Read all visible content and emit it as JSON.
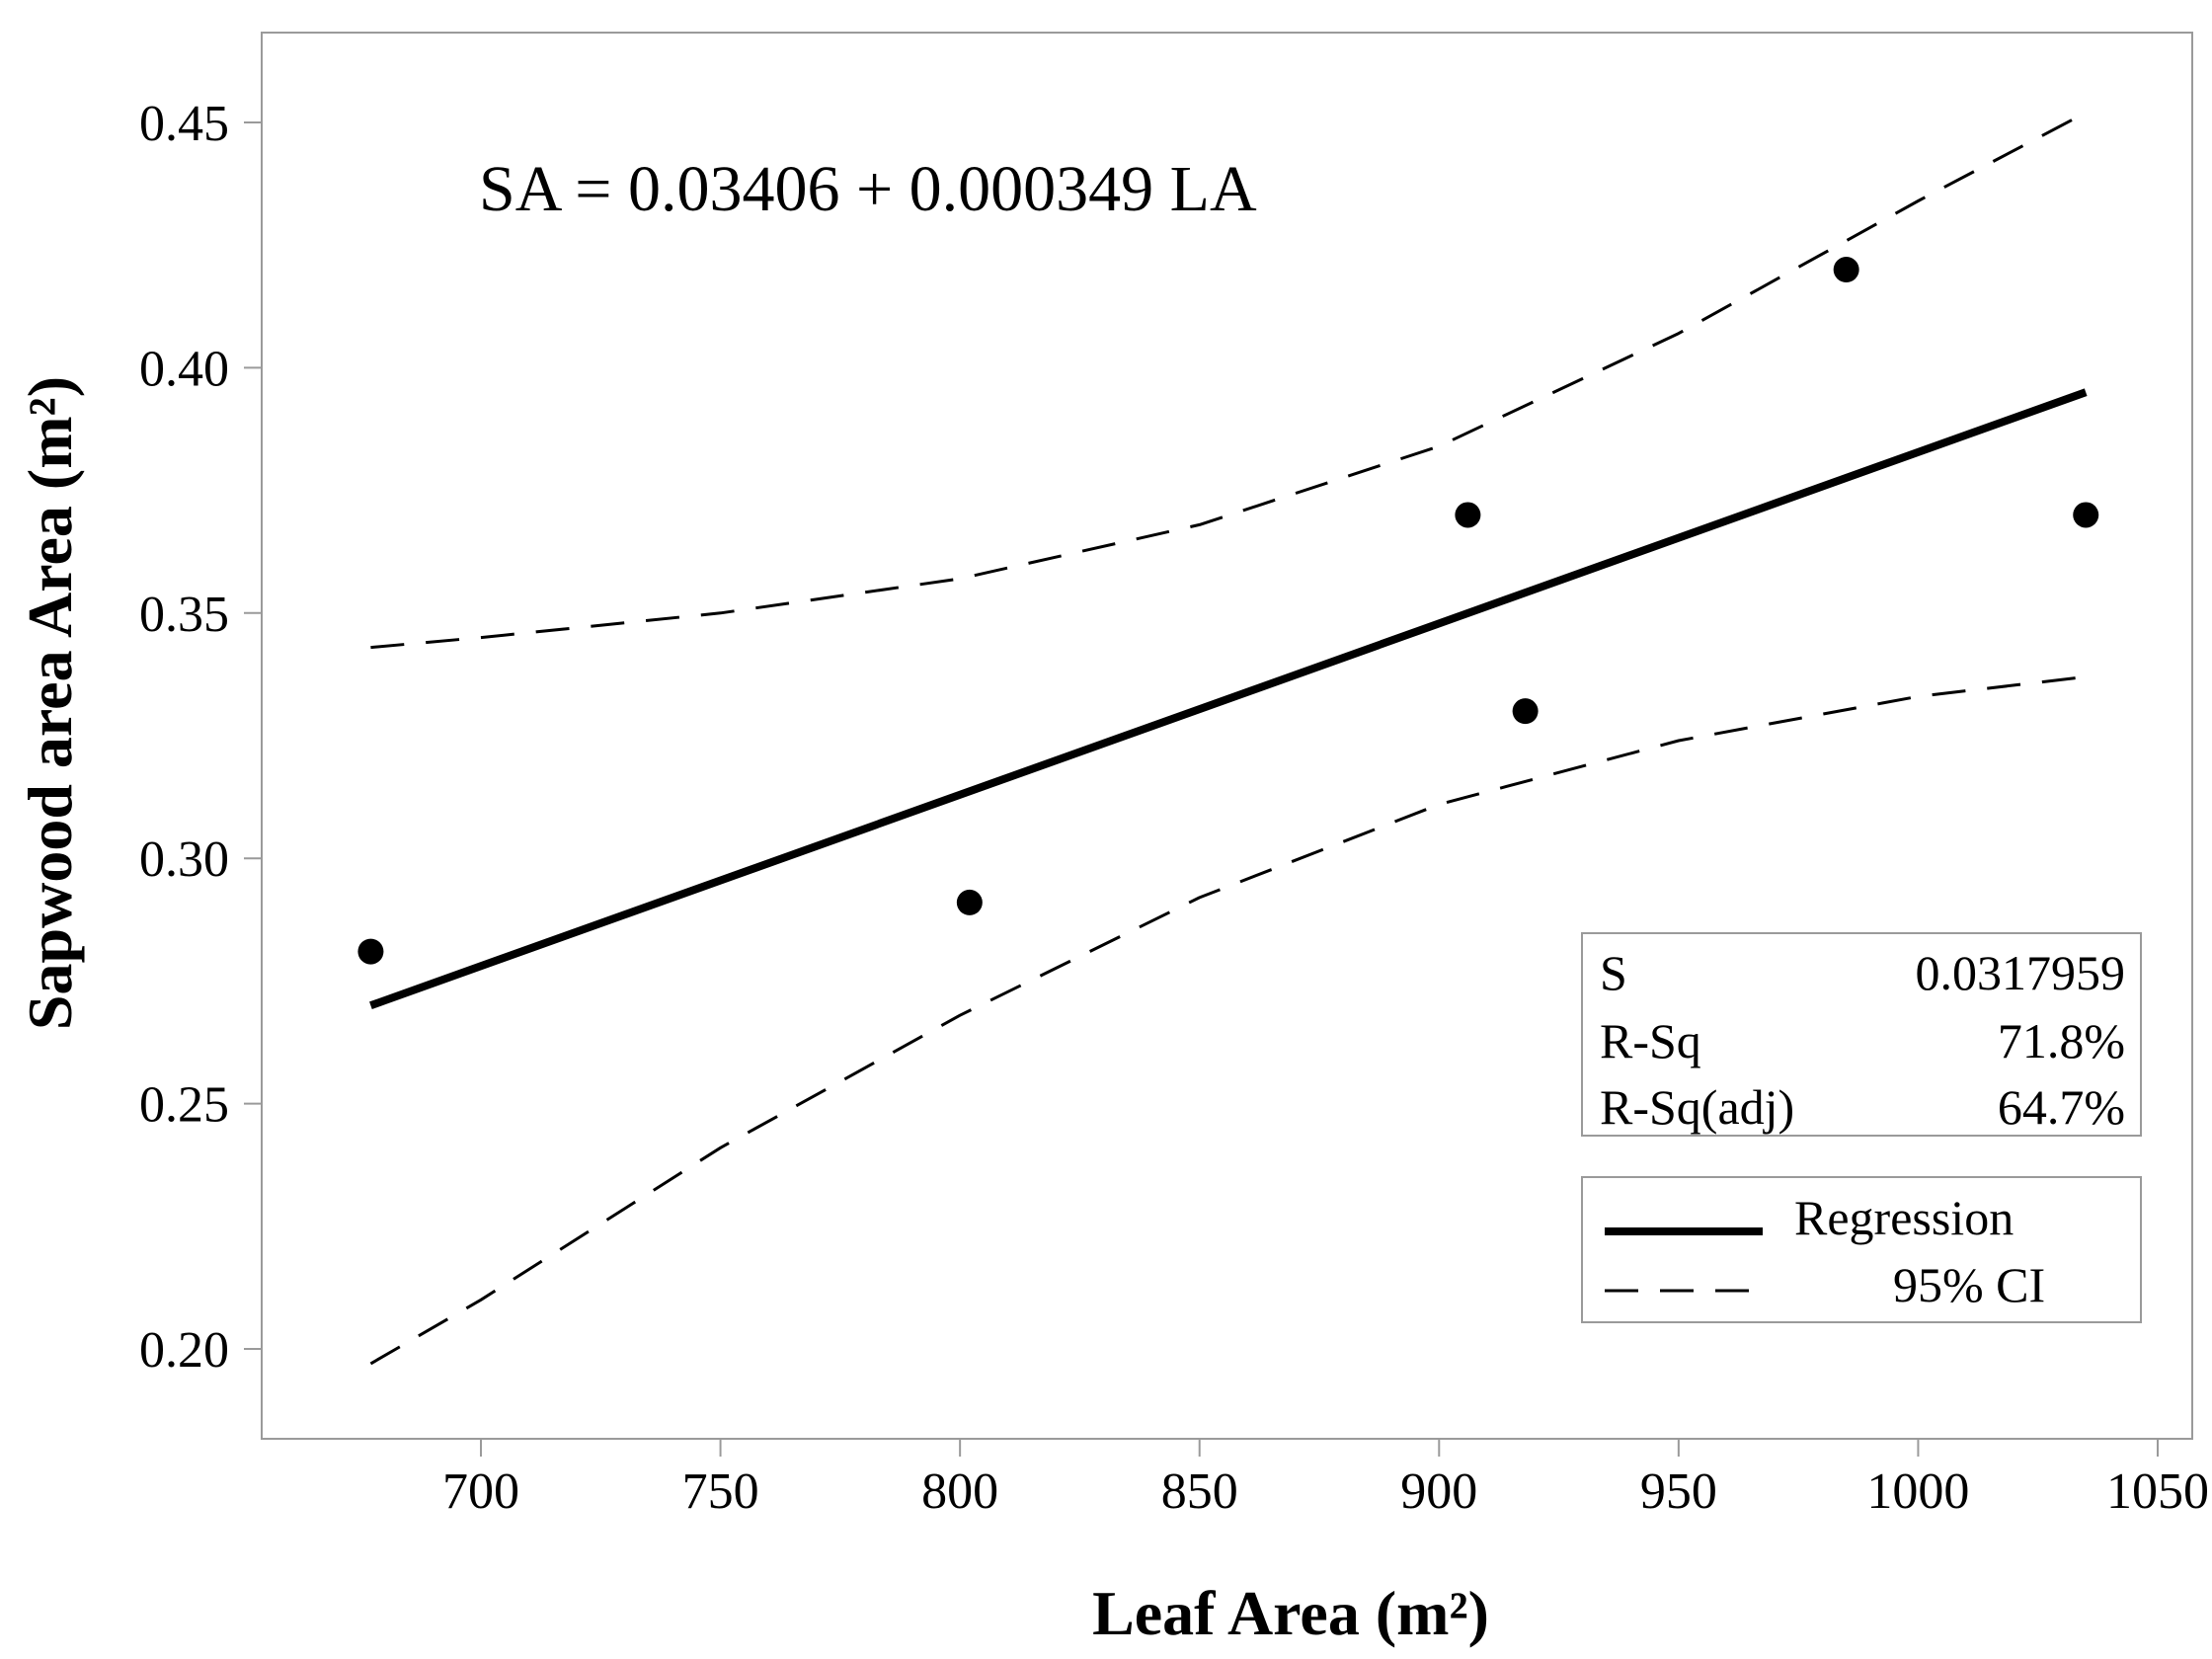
{
  "chart_data": {
    "type": "scatter",
    "title": "",
    "xlabel": "Leaf Area (m²)",
    "ylabel": "Sapwood area Area (m²)",
    "xlim": [
      655,
      1050
    ],
    "ylim": [
      0.18,
      0.468
    ],
    "xticks": [
      700,
      750,
      800,
      850,
      900,
      950,
      1000,
      1050
    ],
    "yticks": [
      0.2,
      0.25,
      0.3,
      0.35,
      0.4,
      0.45
    ],
    "xtick_labels": [
      "700",
      "750",
      "800",
      "850",
      "900",
      "950",
      "1000",
      "1050"
    ],
    "ytick_labels": [
      "0.20",
      "0.25",
      "0.30",
      "0.35",
      "0.40",
      "0.45"
    ],
    "equation": "SA = 0.03406 + 0.000349 LA",
    "points": {
      "x": [
        677,
        802,
        906,
        918,
        985,
        1035
      ],
      "y": [
        0.281,
        0.291,
        0.37,
        0.33,
        0.42,
        0.37
      ]
    },
    "series": [
      {
        "name": "Regression",
        "style": "solid",
        "x": [
          677,
          1035
        ],
        "y": [
          0.27,
          0.395
        ]
      },
      {
        "name": "95% CI upper",
        "style": "dashed",
        "x": [
          677,
          700,
          750,
          800,
          850,
          900,
          950,
          1000,
          1035
        ],
        "y": [
          0.343,
          0.345,
          0.35,
          0.357,
          0.368,
          0.384,
          0.407,
          0.434,
          0.452
        ]
      },
      {
        "name": "95% CI lower",
        "style": "dashed",
        "x": [
          677,
          700,
          750,
          800,
          850,
          900,
          950,
          1000,
          1035
        ],
        "y": [
          0.197,
          0.21,
          0.241,
          0.268,
          0.292,
          0.311,
          0.324,
          0.333,
          0.337
        ]
      }
    ],
    "stats": [
      {
        "label": "S",
        "value": "0.0317959"
      },
      {
        "label": "R-Sq",
        "value": "71.8%"
      },
      {
        "label": "R-Sq(adj)",
        "value": "64.7%"
      }
    ],
    "legend": {
      "position": "bottom-right",
      "items": [
        {
          "label": "Regression",
          "style": "solid"
        },
        {
          "label": "95% CI",
          "style": "dashed"
        }
      ]
    }
  }
}
